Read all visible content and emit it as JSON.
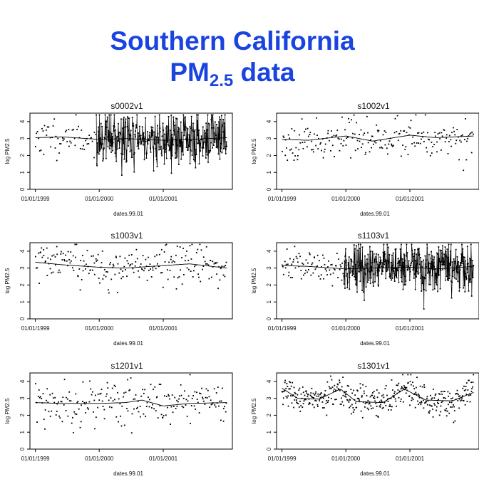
{
  "title": {
    "line1": "Southern California",
    "line2_main": "PM",
    "line2_sub": "2.5",
    "line2_tail": " data"
  },
  "chart_data": [
    {
      "type": "scatter",
      "panel": "s0002v1",
      "title": "s0002v1",
      "xlabel": "dates.99.01",
      "ylabel": "log PM2.5",
      "xticks": [
        "01/01/1999",
        "01/01/2000",
        "01/01/2001"
      ],
      "xlim": [
        "1998-12-01",
        "2002-01-31"
      ],
      "ylim": [
        0,
        4.5
      ],
      "yticks": [
        0,
        1,
        2,
        3,
        4
      ],
      "x_start": "1999-01-01",
      "x_end": "2001-12-31",
      "mode": "dense-segments",
      "seed": 11,
      "sparse_until": "1999-12-15",
      "density": {
        "sparse": 60,
        "dense": 360
      },
      "spread": {
        "sparse": 0.55,
        "dense": 0.85
      },
      "smooth": {
        "x": [
          "1999-01-01",
          "1999-06-01",
          "2000-01-01",
          "2000-06-01",
          "2001-01-01",
          "2001-06-01",
          "2001-12-31"
        ],
        "y": [
          3.05,
          3.1,
          2.95,
          3.0,
          2.9,
          2.95,
          3.05
        ]
      }
    },
    {
      "type": "scatter",
      "panel": "s1002v1",
      "title": "s1002v1",
      "xlabel": "dates.99.01",
      "ylabel": "log PM2.5",
      "xticks": [
        "01/01/1999",
        "01/01/2000",
        "01/01/2001"
      ],
      "xlim": [
        "1998-12-01",
        "2002-01-31"
      ],
      "ylim": [
        0,
        4.5
      ],
      "yticks": [
        0,
        1,
        2,
        3,
        4
      ],
      "x_start": "1999-01-01",
      "x_end": "2001-12-31",
      "mode": "points",
      "seed": 23,
      "density": {
        "sparse": 220,
        "dense": 220
      },
      "spread": {
        "sparse": 0.55,
        "dense": 0.55
      },
      "smooth": {
        "x": [
          "1999-01-01",
          "1999-06-01",
          "2000-01-01",
          "2000-06-01",
          "2001-01-01",
          "2001-06-01",
          "2001-12-31"
        ],
        "y": [
          2.95,
          2.9,
          3.15,
          2.85,
          3.2,
          3.05,
          3.15
        ]
      }
    },
    {
      "type": "scatter",
      "panel": "s1003v1",
      "title": "s1003v1",
      "xlabel": "dates.99.01",
      "ylabel": "log PM2.5",
      "xticks": [
        "01/01/1999",
        "01/01/2000",
        "01/01/2001"
      ],
      "xlim": [
        "1998-12-01",
        "2002-01-31"
      ],
      "ylim": [
        0,
        4.5
      ],
      "yticks": [
        0,
        1,
        2,
        3,
        4
      ],
      "x_start": "1999-01-01",
      "x_end": "2001-12-31",
      "mode": "points",
      "seed": 37,
      "density": {
        "sparse": 230,
        "dense": 230
      },
      "spread": {
        "sparse": 0.6,
        "dense": 0.6
      },
      "smooth": {
        "x": [
          "1999-01-01",
          "1999-06-01",
          "2000-01-01",
          "2000-06-01",
          "2001-01-01",
          "2001-06-01",
          "2001-12-31"
        ],
        "y": [
          3.35,
          3.2,
          3.05,
          3.0,
          3.15,
          3.25,
          3.0
        ]
      }
    },
    {
      "type": "scatter",
      "panel": "s1103v1",
      "title": "s1103v1",
      "xlabel": "dates.99.01",
      "ylabel": "log PM2.5",
      "xticks": [
        "01/01/1999",
        "01/01/2000",
        "01/01/2001"
      ],
      "xlim": [
        "1998-12-01",
        "2002-01-31"
      ],
      "ylim": [
        0,
        4.5
      ],
      "yticks": [
        0,
        1,
        2,
        3,
        4
      ],
      "x_start": "1999-01-01",
      "x_end": "2001-12-31",
      "mode": "dense-segments",
      "seed": 41,
      "sparse_until": "1999-12-20",
      "density": {
        "sparse": 80,
        "dense": 400
      },
      "spread": {
        "sparse": 0.45,
        "dense": 0.75
      },
      "smooth": {
        "x": [
          "1999-01-01",
          "1999-06-01",
          "2000-01-01",
          "2000-06-01",
          "2001-01-01",
          "2001-06-01",
          "2001-12-31"
        ],
        "y": [
          3.15,
          3.1,
          2.95,
          3.0,
          3.05,
          2.95,
          3.1
        ]
      }
    },
    {
      "type": "scatter",
      "panel": "s1201v1",
      "title": "s1201v1",
      "xlabel": "dates.99.01",
      "ylabel": "log PM2.5",
      "xticks": [
        "01/01/1999",
        "01/01/2000",
        "01/01/2001"
      ],
      "xlim": [
        "1998-12-01",
        "2002-01-31"
      ],
      "ylim": [
        0,
        4.5
      ],
      "yticks": [
        0,
        1,
        2,
        3,
        4
      ],
      "x_start": "1999-01-01",
      "x_end": "2001-12-31",
      "mode": "points",
      "seed": 53,
      "density": {
        "sparse": 230,
        "dense": 230
      },
      "spread": {
        "sparse": 0.65,
        "dense": 0.65
      },
      "smooth": {
        "x": [
          "1999-01-01",
          "1999-06-01",
          "2000-01-01",
          "2000-06-01",
          "2000-09-01",
          "2001-01-01",
          "2001-06-01",
          "2001-12-31"
        ],
        "y": [
          2.75,
          2.7,
          2.7,
          2.75,
          2.9,
          2.55,
          2.7,
          2.75
        ]
      }
    },
    {
      "type": "scatter",
      "panel": "s1301v1",
      "title": "s1301v1",
      "xlabel": "dates.99.01",
      "ylabel": "log PM2.5",
      "xticks": [
        "01/01/1999",
        "01/01/2000",
        "01/01/2001"
      ],
      "xlim": [
        "1998-12-01",
        "2002-01-31"
      ],
      "ylim": [
        0,
        4.5
      ],
      "yticks": [
        0,
        1,
        2,
        3,
        4
      ],
      "x_start": "1999-01-01",
      "x_end": "2001-12-31",
      "mode": "points",
      "seed": 67,
      "density": {
        "sparse": 420,
        "dense": 420
      },
      "spread": {
        "sparse": 0.4,
        "dense": 0.4
      },
      "smooth": {
        "x": [
          "1999-01-01",
          "1999-04-01",
          "1999-08-01",
          "1999-12-01",
          "2000-03-01",
          "2000-08-01",
          "2000-12-01",
          "2001-04-01",
          "2001-09-01",
          "2001-12-31"
        ],
        "y": [
          3.6,
          3.0,
          2.95,
          3.55,
          2.8,
          2.75,
          3.55,
          2.9,
          2.85,
          3.35
        ]
      }
    }
  ]
}
